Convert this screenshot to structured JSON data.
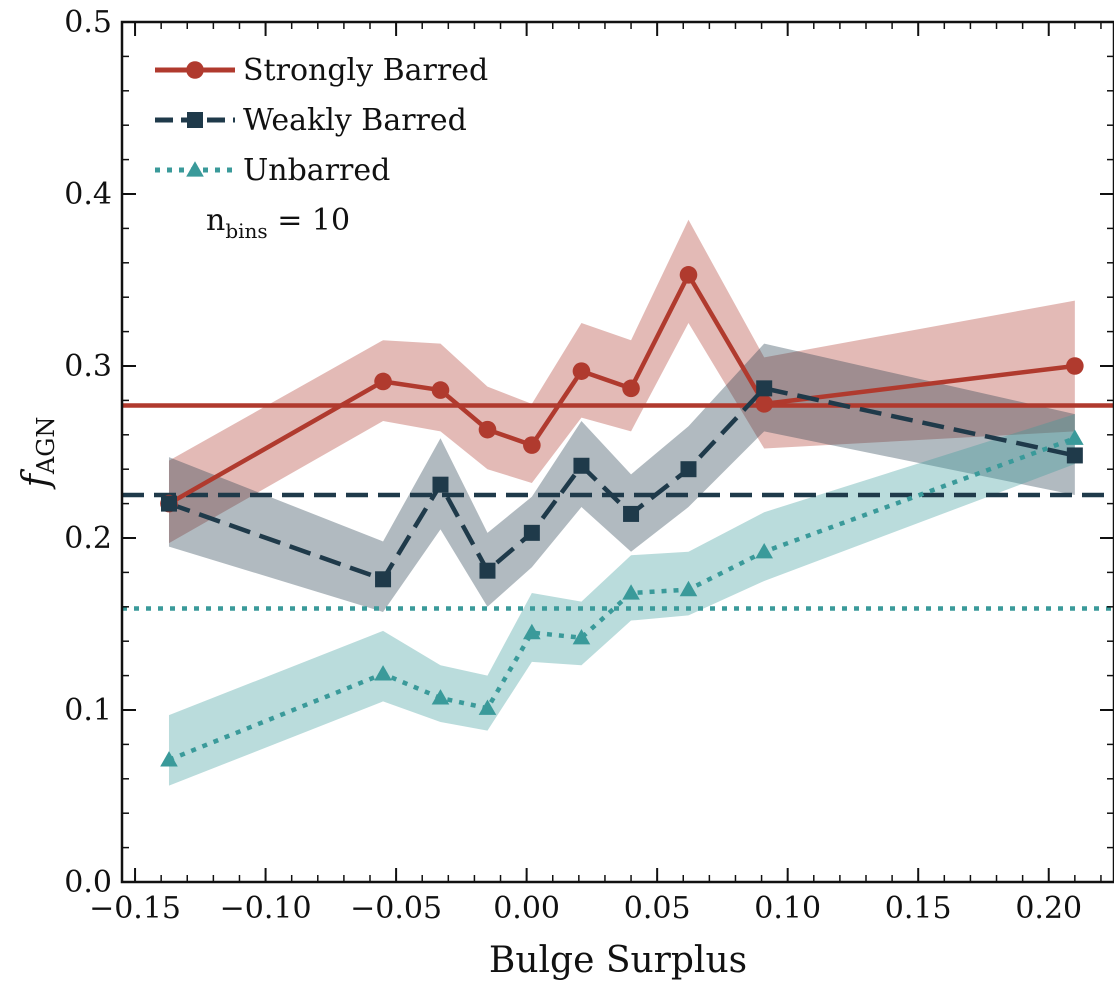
{
  "chart_data": {
    "type": "line",
    "xlabel": "Bulge Surplus",
    "ylabel_main": "f",
    "ylabel_sub": "AGN",
    "annotation_main": "n",
    "annotation_sub": "bins",
    "annotation_rest": " = 10",
    "xlim": [
      -0.155,
      0.225
    ],
    "ylim": [
      0.0,
      0.5
    ],
    "xticks": [
      -0.15,
      -0.1,
      -0.05,
      0.0,
      0.05,
      0.1,
      0.15,
      0.2
    ],
    "xtick_labels": [
      "−0.15",
      "−0.10",
      "−0.05",
      "0.00",
      "0.05",
      "0.10",
      "0.15",
      "0.20"
    ],
    "yticks": [
      0.0,
      0.1,
      0.2,
      0.3,
      0.4,
      0.5
    ],
    "ytick_labels": [
      "0.0",
      "0.1",
      "0.2",
      "0.3",
      "0.4",
      "0.5"
    ],
    "grid": false,
    "legend_position": "top-left",
    "series": [
      {
        "name": "Strongly Barred",
        "color": "#b03a2e",
        "line_style": "solid",
        "marker": "circle",
        "x": [
          -0.137,
          -0.055,
          -0.033,
          -0.015,
          0.002,
          0.021,
          0.04,
          0.062,
          0.091,
          0.21
        ],
        "y": [
          0.22,
          0.291,
          0.286,
          0.263,
          0.254,
          0.297,
          0.287,
          0.353,
          0.278,
          0.3
        ],
        "lower": [
          0.197,
          0.268,
          0.262,
          0.24,
          0.232,
          0.27,
          0.262,
          0.325,
          0.252,
          0.262
        ],
        "upper": [
          0.245,
          0.315,
          0.313,
          0.288,
          0.278,
          0.325,
          0.315,
          0.385,
          0.305,
          0.338
        ],
        "reference_y": 0.277
      },
      {
        "name": "Weakly Barred",
        "color": "#1f3a4a",
        "line_style": "dashed",
        "marker": "square",
        "x": [
          -0.137,
          -0.055,
          -0.033,
          -0.015,
          0.002,
          0.021,
          0.04,
          0.062,
          0.091,
          0.21
        ],
        "y": [
          0.22,
          0.176,
          0.231,
          0.181,
          0.203,
          0.242,
          0.214,
          0.24,
          0.287,
          0.248
        ],
        "lower": [
          0.195,
          0.157,
          0.205,
          0.16,
          0.183,
          0.218,
          0.192,
          0.218,
          0.262,
          0.225
        ],
        "upper": [
          0.247,
          0.198,
          0.258,
          0.203,
          0.224,
          0.268,
          0.237,
          0.265,
          0.313,
          0.272
        ],
        "reference_y": 0.225
      },
      {
        "name": "Unbarred",
        "color": "#3a9a9a",
        "line_style": "dotted",
        "marker": "triangle",
        "x": [
          -0.137,
          -0.055,
          -0.033,
          -0.015,
          0.002,
          0.021,
          0.04,
          0.062,
          0.091,
          0.21
        ],
        "y": [
          0.071,
          0.121,
          0.107,
          0.101,
          0.145,
          0.142,
          0.168,
          0.17,
          0.192,
          0.258
        ],
        "lower": [
          0.056,
          0.105,
          0.093,
          0.088,
          0.128,
          0.126,
          0.152,
          0.155,
          0.175,
          0.243
        ],
        "upper": [
          0.097,
          0.146,
          0.126,
          0.12,
          0.168,
          0.163,
          0.19,
          0.192,
          0.215,
          0.272
        ],
        "reference_y": 0.159
      }
    ]
  }
}
